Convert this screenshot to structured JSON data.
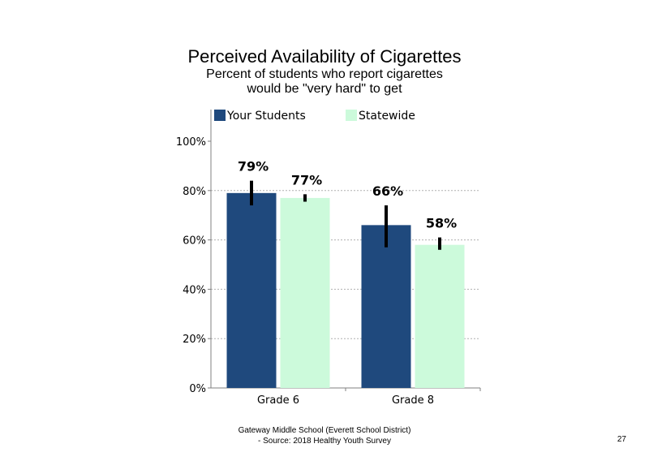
{
  "slide": {
    "title": "Perceived Availability of Cigarettes",
    "subtitle_lines": [
      "Percent of students who report cigarettes",
      "would be \"very hard\" to get"
    ],
    "footer_lines": [
      "Gateway Middle School (Everett School District)",
      "- Source: 2018 Healthy Youth Survey"
    ],
    "page_number": "27"
  },
  "chart_data": {
    "type": "bar",
    "title": "Perceived Availability of Cigarettes",
    "subtitle": "Percent of students who report cigarettes would be \"very hard\" to get",
    "xlabel": "",
    "ylabel": "",
    "categories": [
      "Grade 6",
      "Grade 8"
    ],
    "series": [
      {
        "name": "Your Students",
        "color": "#1f497d",
        "values": [
          79,
          66
        ],
        "labels": [
          "79%",
          "66%"
        ],
        "error_low": [
          74,
          57
        ],
        "error_high": [
          84,
          74
        ]
      },
      {
        "name": "Statewide",
        "color": "#ccfadb",
        "values": [
          77,
          58
        ],
        "labels": [
          "77%",
          "58%"
        ],
        "error_low": [
          75.5,
          56
        ],
        "error_high": [
          78.5,
          61
        ]
      }
    ],
    "ylim": [
      0,
      100
    ],
    "yticks": [
      0,
      20,
      40,
      60,
      80,
      100
    ],
    "ytick_labels": [
      "0%",
      "20%",
      "40%",
      "60%",
      "80%",
      "100%"
    ],
    "grid": "horizontal dashed",
    "legend_position": "top"
  }
}
